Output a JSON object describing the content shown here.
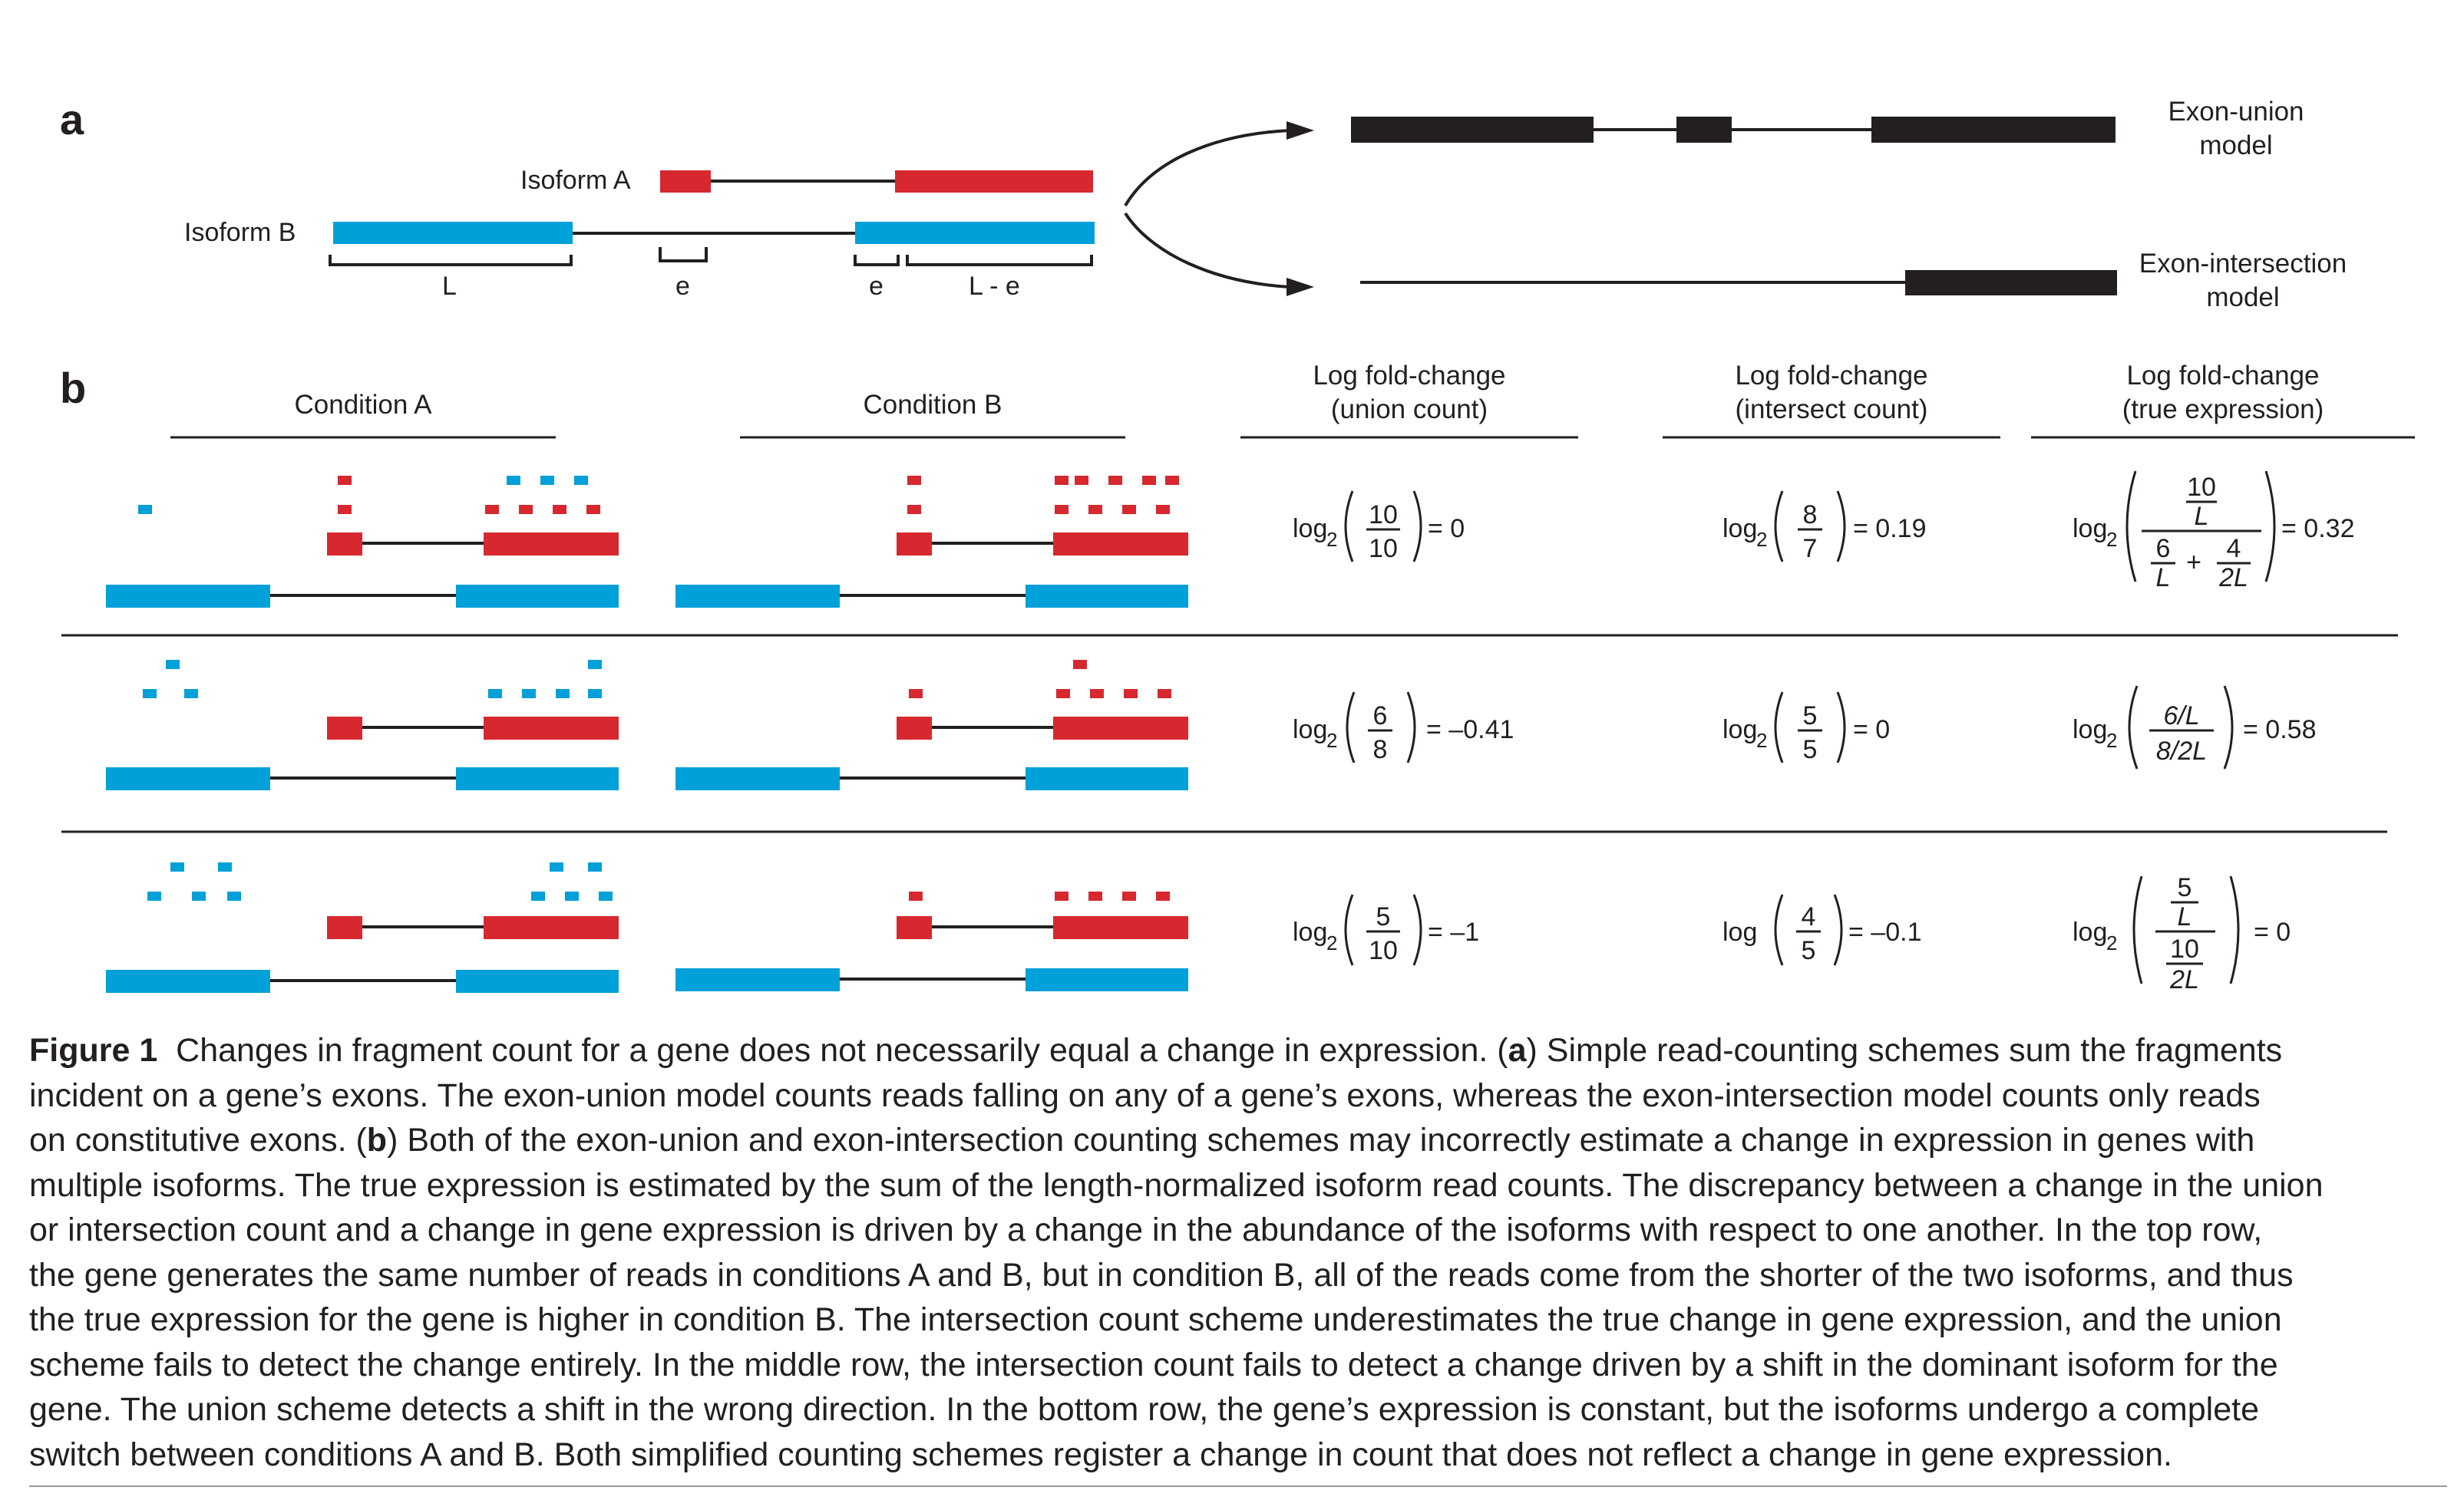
{
  "panel_a": {
    "label": "a",
    "isoform_a_label": "Isoform A",
    "isoform_b_label": "Isoform B",
    "segment_labels": [
      "L",
      "e",
      "e",
      "L - e"
    ],
    "union_model_label": [
      "Exon-union",
      "model"
    ],
    "intersection_model_label": [
      "Exon-intersection",
      "model"
    ]
  },
  "panel_b": {
    "label": "b",
    "condition_a": "Condition A",
    "condition_b": "Condition B",
    "col_union": [
      "Log fold-change",
      "(union count)"
    ],
    "col_intersect": [
      "Log fold-change",
      "(intersect count)"
    ],
    "col_true": [
      "Log fold-change",
      "(true expression)"
    ],
    "rows": [
      {
        "union": {
          "log": "log",
          "base": "2",
          "num": "10",
          "den": "10",
          "result": "= 0"
        },
        "intersect": {
          "log": "log",
          "base": "2",
          "num": "8",
          "den": "7",
          "result": "= 0.19"
        },
        "true": {
          "log": "log",
          "base": "2",
          "num_top": "10",
          "num_bottom": "L",
          "den_a_top": "6",
          "den_a_bottom": "L",
          "plus": "+",
          "den_b_top": "4",
          "den_b_bottom": "2L",
          "result": "= 0.32"
        }
      },
      {
        "union": {
          "log": "log",
          "base": "2",
          "num": "6",
          "den": "8",
          "result": "= –0.41"
        },
        "intersect": {
          "log": "log",
          "base": "2",
          "num": "5",
          "den": "5",
          "result": "= 0"
        },
        "true": {
          "log": "log",
          "base": "2",
          "num": "6/L",
          "den": "8/2L",
          "result": "= 0.58"
        }
      },
      {
        "union": {
          "log": "log",
          "base": "2",
          "num": "5",
          "den": "10",
          "result": "= –1"
        },
        "intersect": {
          "log": "log",
          "base": "",
          "num": "4",
          "den": "5",
          "result": "= –0.1"
        },
        "true": {
          "log": "log",
          "base": "2",
          "num_top": "5",
          "num_bottom": "L",
          "den_top": "10",
          "den_bottom": "2L",
          "result": "= 0"
        }
      }
    ]
  },
  "colors": {
    "isoform_a": "#d7282f",
    "isoform_b": "#00a0d8",
    "ink": "#231f20"
  },
  "caption": {
    "figure_label": "Figure 1",
    "lines": [
      "Changes in fragment count for a gene does not necessarily equal a change in expression. (",
      "a",
      ") Simple read-counting schemes sum the fragments",
      "incident on a gene’s exons. The exon-union model counts reads falling on any of a gene’s exons, whereas the exon-intersection model counts only reads",
      "on constitutive exons. (",
      "b",
      ") Both of the exon-union and exon-intersection counting schemes may incorrectly estimate a change in expression in genes with",
      "multiple isoforms. The true expression is estimated by the sum of the length-normalized isoform read counts. The discrepancy between a change in the union",
      "or intersection count and a change in gene expression is driven by a change in the abundance of the isoforms with respect to one another. In the top row,",
      "the gene generates the same number of reads in conditions A and B, but in condition B, all of the reads come from the shorter of the two isoforms, and thus",
      "the true expression for the gene is higher in condition B. The intersection count scheme underestimates the true change in gene expression, and the union",
      "scheme fails to detect the change entirely. In the middle row, the intersection count fails to detect a change driven by a shift in the dominant isoform for the",
      "gene. The union scheme detects a shift in the wrong direction. In the bottom row, the gene’s expression is constant, but the isoforms undergo a complete",
      "switch between conditions A and B. Both simplified counting schemes register a change in count that does not reflect a change in gene expression."
    ]
  }
}
